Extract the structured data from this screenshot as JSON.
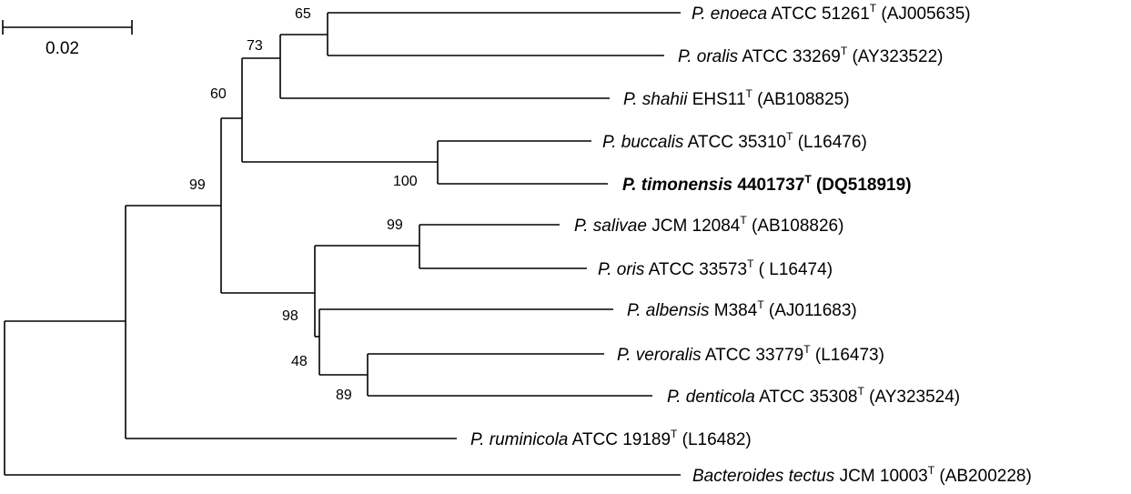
{
  "scale_bar": {
    "label": "0.02"
  },
  "taxa": [
    {
      "key": "enoeca",
      "genus": "P. enoeca",
      "strain": " ATCC 51261",
      "sup": "T",
      "acc": " (AJ005635)",
      "bold": false
    },
    {
      "key": "oralis",
      "genus": "P. oralis",
      "strain": " ATCC 33269",
      "sup": "T",
      "acc": " (AY323522)",
      "bold": false
    },
    {
      "key": "shahii",
      "genus": "P. shahii",
      "strain": " EHS11",
      "sup": "T",
      "acc": " (AB108825)",
      "bold": false
    },
    {
      "key": "buccalis",
      "genus": "P. buccalis",
      "strain": " ATCC 35310",
      "sup": "T",
      "acc": " (L16476)",
      "bold": false
    },
    {
      "key": "timonensis",
      "genus": "P. timonensis",
      "strain": " 4401737",
      "sup": "T",
      "acc": " (DQ518919)",
      "bold": true
    },
    {
      "key": "salivae",
      "genus": "P. salivae",
      "strain": " JCM 12084",
      "sup": "T",
      "acc": " (AB108826)",
      "bold": false
    },
    {
      "key": "oris",
      "genus": "P. oris",
      "strain": " ATCC 33573",
      "sup": "T",
      "acc": " ( L16474)",
      "bold": false
    },
    {
      "key": "albensis",
      "genus": "P. albensis",
      "strain": " M384",
      "sup": "T",
      "acc": " (AJ011683)",
      "bold": false
    },
    {
      "key": "veroralis",
      "genus": "P. veroralis",
      "strain": " ATCC 33779",
      "sup": "T",
      "acc": " (L16473)",
      "bold": false
    },
    {
      "key": "denticola",
      "genus": "P. denticola",
      "strain": " ATCC 35308",
      "sup": "T",
      "acc": " (AY323524)",
      "bold": false
    },
    {
      "key": "ruminicola",
      "genus": "P. ruminicola",
      "strain": " ATCC 19189",
      "sup": "T",
      "acc": " (L16482)",
      "bold": false
    },
    {
      "key": "tectus",
      "genus": "Bacteroides tectus",
      "strain": " JCM 10003",
      "sup": "T",
      "acc": " (AB200228)",
      "bold": false
    }
  ],
  "bootstrap": [
    {
      "key": "enoeca-oralis",
      "value": "65"
    },
    {
      "key": "shahii-clade",
      "value": "73"
    },
    {
      "key": "buccalis-clade",
      "value": "60"
    },
    {
      "key": "buccalis-timonensis",
      "value": "100"
    },
    {
      "key": "ingroup",
      "value": "99"
    },
    {
      "key": "salivae-oris",
      "value": "99"
    },
    {
      "key": "albensis-clade",
      "value": "98"
    },
    {
      "key": "veroralis-clade",
      "value": "48"
    },
    {
      "key": "veroralis-denticola",
      "value": "89"
    }
  ]
}
